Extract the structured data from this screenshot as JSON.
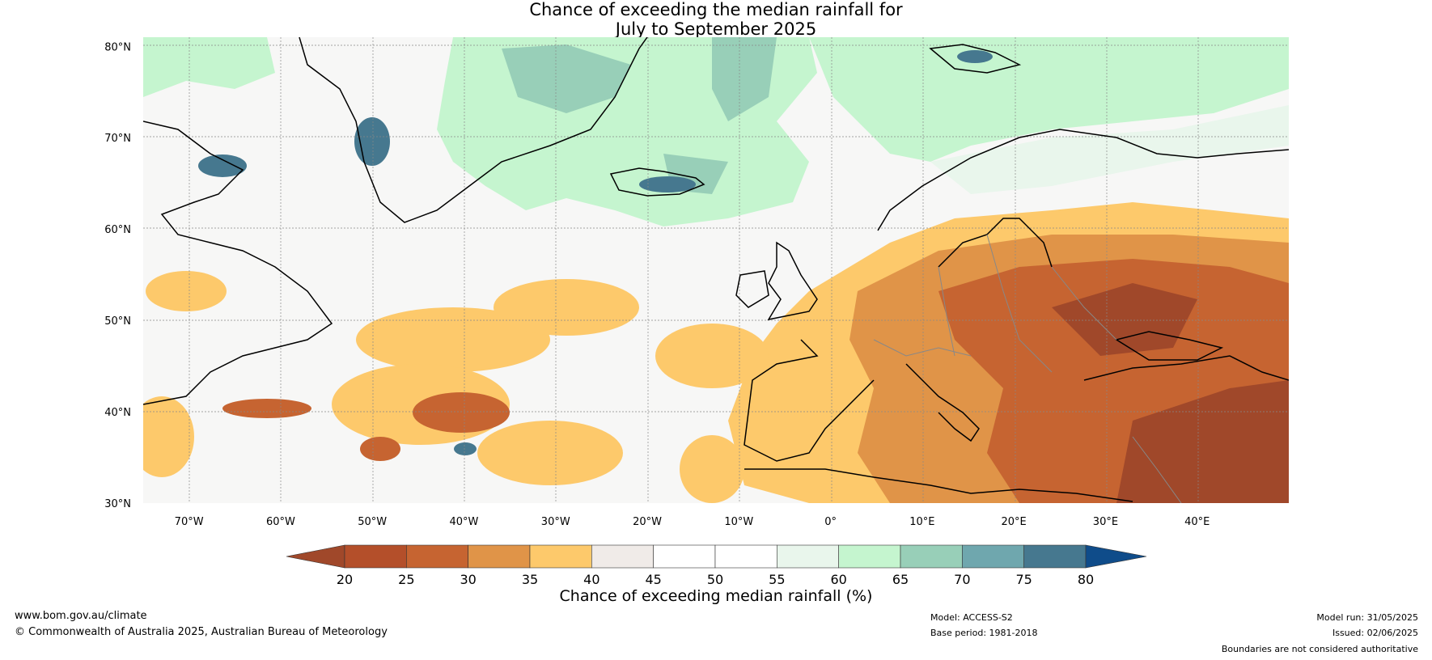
{
  "title": {
    "line1": "Chance of exceeding the median rainfall for",
    "line2": "July to September 2025"
  },
  "map": {
    "lat_labels": [
      "80°N",
      "70°N",
      "60°N",
      "50°N",
      "40°N",
      "30°N"
    ],
    "lon_labels": [
      "70°W",
      "60°W",
      "50°W",
      "40°W",
      "30°W",
      "20°W",
      "10°W",
      "0°",
      "10°E",
      "20°E",
      "30°E",
      "40°E"
    ],
    "lat_range": [
      30,
      81
    ],
    "lon_range": [
      -75,
      50
    ],
    "grid": true
  },
  "colorbar": {
    "ticks": [
      "20",
      "25",
      "30",
      "35",
      "40",
      "45",
      "50",
      "55",
      "60",
      "65",
      "70",
      "75",
      "80"
    ],
    "colors": [
      "#a0482a",
      "#b44f2a",
      "#c66431",
      "#e09448",
      "#fdc96b",
      "#f0ebe8",
      "#ffffff",
      "#ffffff",
      "#e9f6ec",
      "#c5f5cf",
      "#98cfb8",
      "#6fa7ae",
      "#46788f",
      "#0f4c8a"
    ],
    "caption": "Chance of exceeding median rainfall (%)"
  },
  "footer": {
    "website": "www.bom.gov.au/climate",
    "copyright": "© Commonwealth of Australia 2025, Australian Bureau of Meteorology",
    "model": "Model: ACCESS-S2",
    "base_period": "Base period: 1981-2018",
    "model_run": "Model run: 31/05/2025",
    "issued": "Issued: 02/06/2025",
    "disclaimer": "Boundaries are not considered authoritative"
  }
}
